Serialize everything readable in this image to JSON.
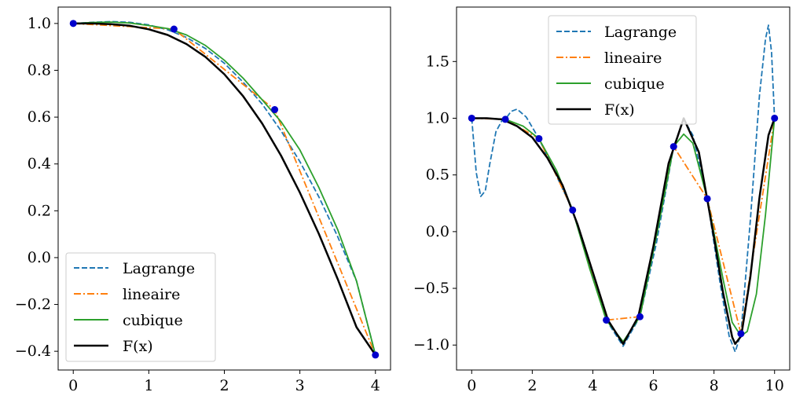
{
  "chart_data": [
    {
      "type": "line",
      "title": "",
      "xlabel": "",
      "ylabel": "",
      "xlim": [
        -0.2,
        4.2
      ],
      "ylim": [
        -0.48,
        1.07
      ],
      "xticks": [
        0,
        1,
        2,
        3,
        4
      ],
      "xtick_labels": [
        "0",
        "1",
        "2",
        "3",
        "4"
      ],
      "yticks": [
        -0.4,
        -0.2,
        0.0,
        0.2,
        0.4,
        0.6,
        0.8,
        1.0
      ],
      "ytick_labels": [
        "−0.4",
        "−0.2",
        "0.0",
        "0.2",
        "0.4",
        "0.6",
        "0.8",
        "1.0"
      ],
      "legend_position": "lower-left",
      "grid": false,
      "nodes": {
        "x": [
          0,
          1.3333,
          2.6667,
          4.0
        ],
        "y": [
          1.0,
          0.976,
          0.632,
          -0.416
        ]
      },
      "series": [
        {
          "name": "Lagrange",
          "style": "dashed",
          "color": "#1f77b4",
          "x": [
            0,
            0.25,
            0.5,
            0.75,
            1.0,
            1.25,
            1.5,
            1.75,
            2.0,
            2.25,
            2.5,
            2.75,
            3.0,
            3.25,
            3.5,
            3.75,
            4.0
          ],
          "y": [
            1.0,
            1.005,
            1.008,
            1.005,
            0.994,
            0.973,
            0.94,
            0.893,
            0.83,
            0.749,
            0.656,
            0.542,
            0.41,
            0.26,
            0.09,
            -0.1,
            -0.416
          ]
        },
        {
          "name": "lineaire",
          "style": "dashdot",
          "color": "#ff7f0e",
          "x": [
            0,
            1.3333,
            2.6667,
            4.0
          ],
          "y": [
            1.0,
            0.976,
            0.632,
            -0.416
          ]
        },
        {
          "name": "cubique",
          "style": "solid",
          "color": "#2ca02c",
          "x": [
            0,
            0.25,
            0.5,
            0.75,
            1.0,
            1.25,
            1.5,
            1.75,
            2.0,
            2.25,
            2.5,
            2.75,
            3.0,
            3.25,
            3.5,
            3.75,
            4.0
          ],
          "y": [
            1.0,
            1.004,
            1.006,
            1.002,
            0.991,
            0.978,
            0.951,
            0.906,
            0.843,
            0.766,
            0.674,
            0.581,
            0.46,
            0.3,
            0.12,
            -0.1,
            -0.416
          ]
        },
        {
          "name": "F(x)",
          "style": "solid",
          "color": "#000000",
          "x": [
            0,
            0.25,
            0.5,
            0.75,
            1.0,
            1.25,
            1.5,
            1.75,
            2.0,
            2.25,
            2.5,
            2.75,
            3.0,
            3.25,
            3.5,
            3.75,
            4.0
          ],
          "y": [
            1.0,
            1.0,
            0.997,
            0.99,
            0.975,
            0.951,
            0.912,
            0.857,
            0.783,
            0.689,
            0.573,
            0.436,
            0.278,
            0.102,
            -0.091,
            -0.297,
            -0.416
          ]
        }
      ]
    },
    {
      "type": "line",
      "title": "",
      "xlabel": "",
      "ylabel": "",
      "xlim": [
        -0.5,
        10.5
      ],
      "ylim": [
        -1.22,
        1.98
      ],
      "xticks": [
        0,
        2,
        4,
        6,
        8,
        10
      ],
      "xtick_labels": [
        "0",
        "2",
        "4",
        "6",
        "8",
        "10"
      ],
      "yticks": [
        -1.0,
        -0.5,
        0.0,
        0.5,
        1.0,
        1.5
      ],
      "ytick_labels": [
        "−1.0",
        "−0.5",
        "0.0",
        "0.5",
        "1.0",
        "1.5"
      ],
      "legend_position": "top-center",
      "grid": false,
      "nodes": {
        "x": [
          0,
          1.111,
          2.222,
          3.333,
          4.444,
          5.556,
          6.667,
          7.778,
          8.889,
          10.0
        ],
        "y": [
          1.0,
          0.99,
          0.82,
          0.19,
          -0.78,
          -0.75,
          0.75,
          0.29,
          -0.9,
          1.0
        ]
      },
      "series": [
        {
          "name": "Lagrange",
          "style": "dashed",
          "color": "#1f77b4",
          "x": [
            0,
            0.15,
            0.3,
            0.45,
            0.6,
            0.8,
            1.0,
            1.111,
            1.3,
            1.5,
            1.8,
            2.222,
            2.7,
            3.333,
            3.9,
            4.444,
            5.0,
            5.556,
            6.1,
            6.667,
            7.0,
            7.3,
            7.778,
            8.2,
            8.5,
            8.7,
            8.889,
            9.2,
            9.5,
            9.7,
            9.8,
            9.9,
            10.0
          ],
          "y": [
            1.0,
            0.52,
            0.31,
            0.36,
            0.6,
            0.88,
            0.98,
            0.99,
            1.06,
            1.08,
            1.01,
            0.82,
            0.55,
            0.19,
            -0.32,
            -0.78,
            -1.01,
            -0.75,
            -0.1,
            0.75,
            0.99,
            0.85,
            0.29,
            -0.45,
            -0.92,
            -1.06,
            -0.9,
            0.1,
            1.2,
            1.7,
            1.82,
            1.58,
            1.0
          ]
        },
        {
          "name": "lineaire",
          "style": "dashdot",
          "color": "#ff7f0e",
          "x": [
            0,
            1.111,
            2.222,
            3.333,
            4.444,
            5.556,
            6.667,
            7.778,
            8.889,
            10.0
          ],
          "y": [
            1.0,
            0.99,
            0.82,
            0.19,
            -0.78,
            -0.75,
            0.75,
            0.29,
            -0.9,
            1.0
          ]
        },
        {
          "name": "cubique",
          "style": "solid",
          "color": "#2ca02c",
          "x": [
            0,
            0.5,
            1.111,
            1.7,
            2.222,
            2.8,
            3.333,
            3.9,
            4.444,
            5.0,
            5.556,
            6.1,
            6.667,
            7.0,
            7.3,
            7.778,
            8.3,
            8.6,
            8.889,
            9.1,
            9.4,
            9.7,
            10.0
          ],
          "y": [
            1.0,
            1.0,
            0.99,
            0.93,
            0.82,
            0.54,
            0.19,
            -0.33,
            -0.78,
            -0.97,
            -0.75,
            -0.04,
            0.75,
            0.86,
            0.78,
            0.29,
            -0.42,
            -0.8,
            -0.92,
            -0.88,
            -0.55,
            0.15,
            1.0
          ]
        },
        {
          "name": "F(x)",
          "style": "solid",
          "color": "#000000",
          "x": [
            0,
            0.5,
            1.0,
            1.5,
            2.0,
            2.5,
            3.0,
            3.5,
            4.0,
            4.5,
            5.0,
            5.5,
            6.0,
            6.5,
            7.0,
            7.5,
            8.0,
            8.3,
            8.6,
            8.7,
            8.9,
            9.2,
            9.5,
            9.8,
            10.0
          ],
          "y": [
            1.0,
            1.0,
            0.99,
            0.93,
            0.83,
            0.65,
            0.41,
            0.06,
            -0.36,
            -0.78,
            -0.99,
            -0.75,
            -0.13,
            0.6,
            1.0,
            0.7,
            -0.05,
            -0.54,
            -0.93,
            -0.99,
            -0.92,
            -0.4,
            0.3,
            0.85,
            1.0
          ]
        }
      ]
    }
  ]
}
